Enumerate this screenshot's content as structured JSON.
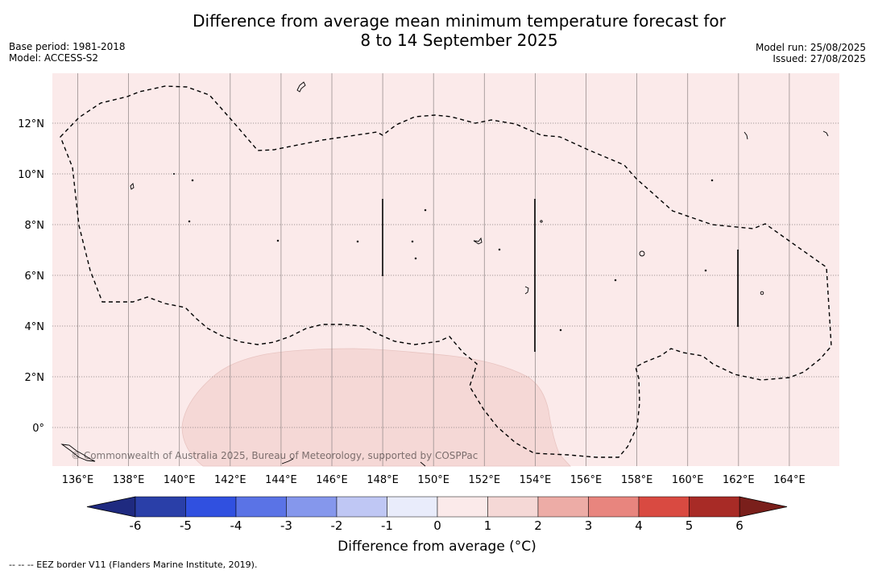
{
  "title": {
    "line1": "Difference from average mean minimum temperature forecast for",
    "line2": "8 to 14 September 2025"
  },
  "meta_left": {
    "base_period": "Base period: 1981-2018",
    "model": "Model: ACCESS-S2"
  },
  "meta_right": {
    "model_run": "Model run: 25/08/2025",
    "issued": "Issued: 27/08/2025"
  },
  "map": {
    "background_color": "#fbeaea",
    "anomaly_region_color": "#f5d8d6",
    "longitude_labels": [
      "136°E",
      "138°E",
      "140°E",
      "142°E",
      "144°E",
      "146°E",
      "148°E",
      "150°E",
      "152°E",
      "154°E",
      "156°E",
      "158°E",
      "160°E",
      "162°E",
      "164°E"
    ],
    "latitude_labels": [
      "12°N",
      "10°N",
      "8°N",
      "6°N",
      "4°N",
      "2°N",
      "0°"
    ],
    "copyright": "© Commonwealth of Australia 2025, Bureau of Meteorology, supported by COSPPac"
  },
  "colorbar": {
    "title": "Difference from average (°C)",
    "tick_labels": [
      "-6",
      "-5",
      "-4",
      "-3",
      "-2",
      "-1",
      "0",
      "1",
      "2",
      "3",
      "4",
      "5",
      "6"
    ],
    "colors": [
      "#2a3fa8",
      "#3050e0",
      "#5a73e6",
      "#8597ec",
      "#bfc7f4",
      "#e9ecfb",
      "#fbeaea",
      "#f5d8d6",
      "#edaca6",
      "#e8857e",
      "#d94a41",
      "#a82b26"
    ],
    "extend_low_color": "#1f2a80",
    "extend_high_color": "#7a1f1b"
  },
  "footnote": "--  --  -- EEZ border V11 (Flanders Marine Institute, 2019)."
}
